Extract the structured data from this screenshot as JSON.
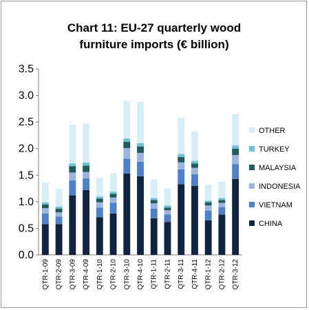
{
  "chart_data": {
    "type": "bar",
    "stacked": true,
    "title_line1": "Chart 11: EU-27 quarterly wood",
    "title_line2": "furniture imports (€ billion)",
    "xlabel": "",
    "ylabel": "",
    "ylim": [
      0,
      3.5
    ],
    "yticks": [
      "0.0",
      "0.5",
      "1.0",
      "1.5",
      "2.0",
      "2.5",
      "3.0",
      "3.5"
    ],
    "grid": false,
    "legend_position": "right",
    "categories": [
      "QTR-1-09",
      "QTR-2-09",
      "QTR-3-09",
      "QTR-4-09",
      "QTR-1-10",
      "QTR-2-10",
      "QTR-3-10",
      "QTR-4-10",
      "QTR-1-11",
      "QTR-2-11",
      "QTR-3-11",
      "QTR-4-11",
      "QTR-1-12",
      "QTR-2-12",
      "QTR-3-12"
    ],
    "series": [
      {
        "name": "CHINA",
        "color": "#10233f",
        "values": [
          0.58,
          0.58,
          1.12,
          1.22,
          0.71,
          0.78,
          1.53,
          1.48,
          0.69,
          0.62,
          1.33,
          1.3,
          0.65,
          0.76,
          1.43
        ]
      },
      {
        "name": "VIETNAM",
        "color": "#4f81c9",
        "values": [
          0.2,
          0.14,
          0.28,
          0.22,
          0.18,
          0.2,
          0.28,
          0.27,
          0.18,
          0.14,
          0.28,
          0.22,
          0.18,
          0.14,
          0.28
        ]
      },
      {
        "name": "INDONESIA",
        "color": "#9cb5df",
        "values": [
          0.1,
          0.08,
          0.15,
          0.12,
          0.1,
          0.1,
          0.2,
          0.17,
          0.1,
          0.08,
          0.13,
          0.12,
          0.1,
          0.08,
          0.17
        ]
      },
      {
        "name": "MALAYSIA",
        "color": "#1f5a5c",
        "values": [
          0.07,
          0.07,
          0.12,
          0.12,
          0.07,
          0.07,
          0.12,
          0.12,
          0.06,
          0.05,
          0.1,
          0.08,
          0.06,
          0.05,
          0.12
        ]
      },
      {
        "name": "TURKEY",
        "color": "#6fc1d3",
        "values": [
          0.04,
          0.04,
          0.05,
          0.06,
          0.04,
          0.04,
          0.06,
          0.06,
          0.04,
          0.04,
          0.06,
          0.05,
          0.03,
          0.04,
          0.06
        ]
      },
      {
        "name": "OTHER",
        "color": "#d8eef7",
        "values": [
          0.37,
          0.33,
          0.73,
          0.73,
          0.35,
          0.35,
          0.71,
          0.78,
          0.35,
          0.32,
          0.68,
          0.55,
          0.3,
          0.31,
          0.59
        ]
      }
    ]
  }
}
